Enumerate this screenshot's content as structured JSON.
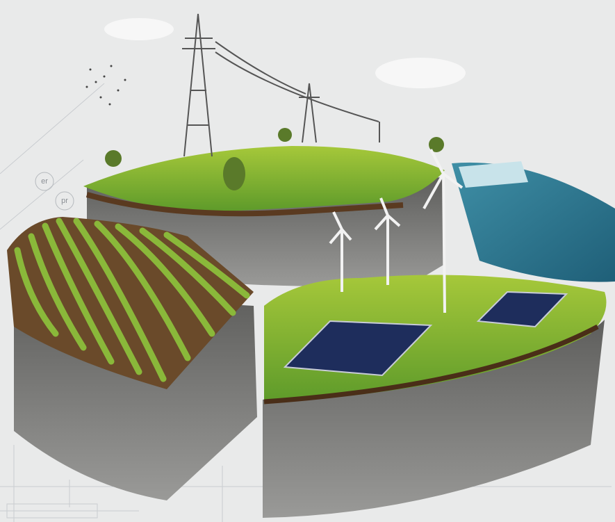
{
  "labels": [
    "er",
    "pr"
  ]
}
